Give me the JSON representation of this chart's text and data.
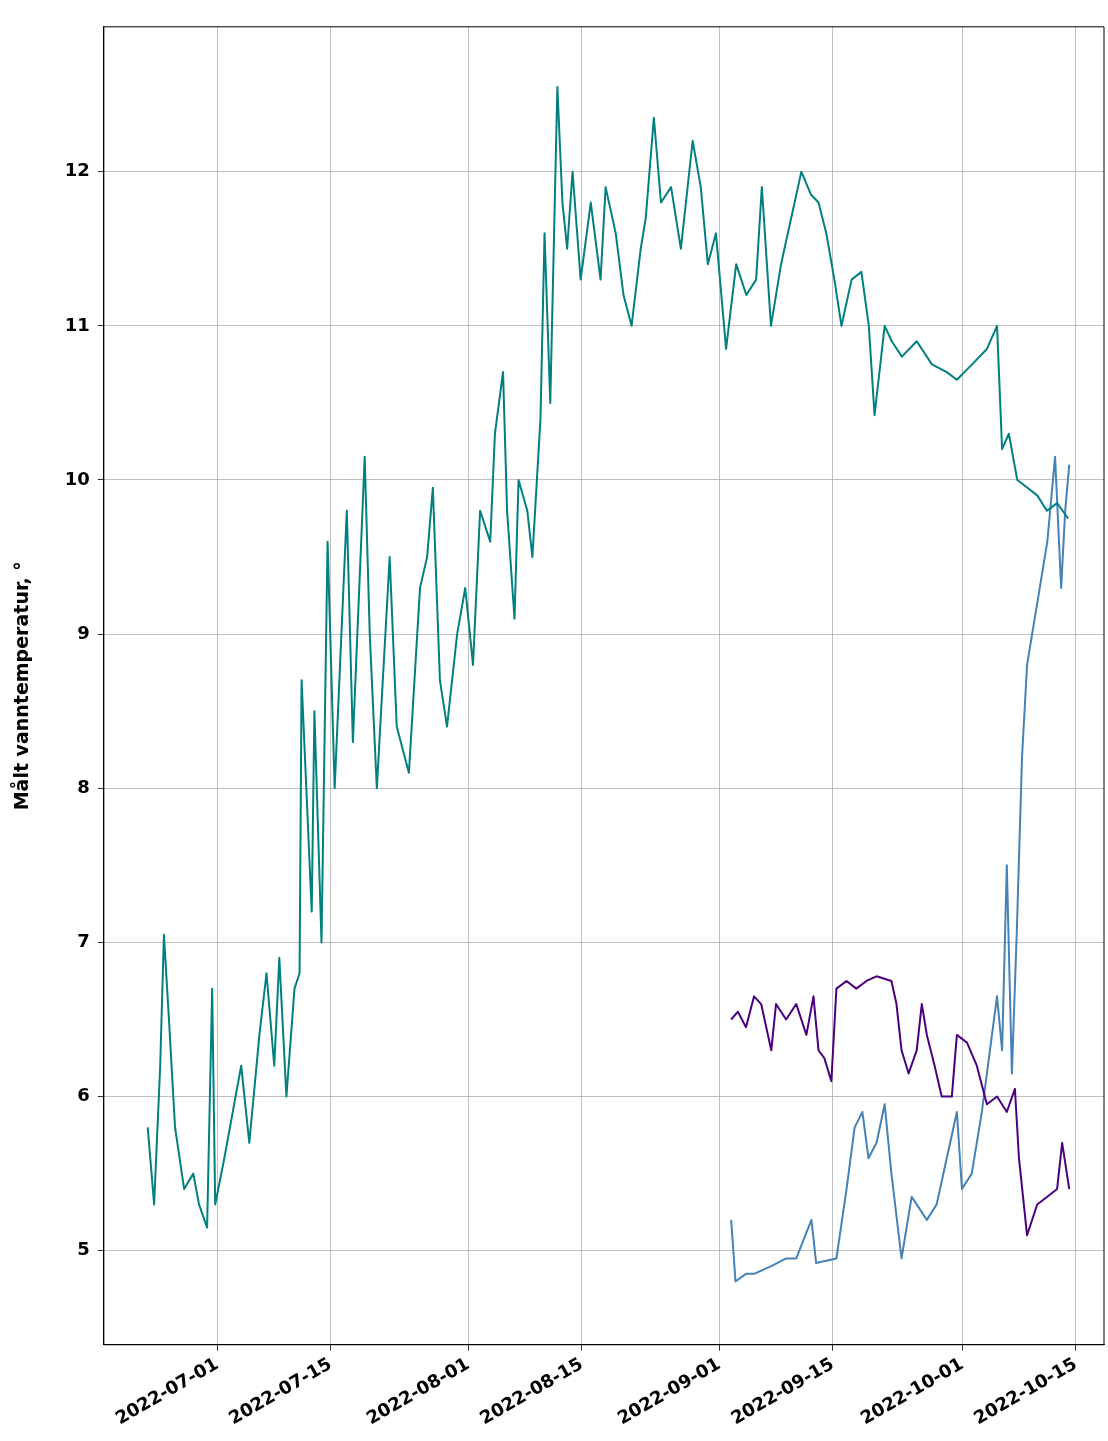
{
  "chart_data": {
    "type": "line",
    "ylabel": "Målt vanntemperatur, °",
    "xlim": [
      "2022-06-17T00:00",
      "2022-10-18T12:00"
    ],
    "xticks": [
      "2022-07-01",
      "2022-07-15",
      "2022-08-01",
      "2022-08-15",
      "2022-09-01",
      "2022-09-15",
      "2022-10-01",
      "2022-10-15"
    ],
    "ylim": [
      4.39,
      12.94
    ],
    "yticks": [
      5,
      6,
      7,
      8,
      9,
      10,
      11,
      12
    ],
    "grid": true,
    "marker": "none",
    "line_style": "solid",
    "series": [
      {
        "color": "#008080",
        "x": [
          "2022-06-22T10:00",
          "2022-06-23T05:00",
          "2022-06-23T23:00",
          "2022-06-24T10:00",
          "2022-06-25T01:00",
          "2022-06-25T19:00",
          "2022-06-26T22:00",
          "2022-06-28T01:00",
          "2022-06-28T18:00",
          "2022-06-29T18:00",
          "2022-06-30T09:00",
          "2022-06-30T18:00",
          "2022-07-01T21:00",
          "2022-07-03T23:00",
          "2022-07-04T23:00",
          "2022-07-06T05:00",
          "2022-07-07T02:00",
          "2022-07-08T01:00",
          "2022-07-08T16:00",
          "2022-07-09T13:00",
          "2022-07-10T13:00",
          "2022-07-11T04:00",
          "2022-07-11T10:00",
          "2022-07-12T16:00",
          "2022-07-13T00:00",
          "2022-07-13T21:00",
          "2022-07-14T15:00",
          "2022-07-15T12:00",
          "2022-07-17T00:00",
          "2022-07-17T18:00",
          "2022-07-19T05:00",
          "2022-07-19T20:00",
          "2022-07-20T17:00",
          "2022-07-22T07:00",
          "2022-07-23T04:00",
          "2022-07-24T16:00",
          "2022-07-26T01:00",
          "2022-07-26T22:00",
          "2022-07-27T15:00",
          "2022-07-28T12:00",
          "2022-07-29T09:00",
          "2022-07-30T15:00",
          "2022-07-31T15:00",
          "2022-08-01T14:00",
          "2022-08-02T11:00",
          "2022-08-03T17:00",
          "2022-08-04T07:00",
          "2022-08-05T07:00",
          "2022-08-05T19:00",
          "2022-08-06T17:00",
          "2022-08-07T05:00",
          "2022-08-08T07:00",
          "2022-08-08T22:00",
          "2022-08-09T22:00",
          "2022-08-10T10:00",
          "2022-08-11T03:00",
          "2022-08-12T00:00",
          "2022-08-12T15:00",
          "2022-08-13T05:00",
          "2022-08-13T21:00",
          "2022-08-14T21:00",
          "2022-08-16T03:00",
          "2022-08-17T08:00",
          "2022-08-17T23:00",
          "2022-08-19T05:00",
          "2022-08-20T04:00",
          "2022-08-21T04:00",
          "2022-08-22T07:00",
          "2022-08-22T22:00",
          "2022-08-23T22:00",
          "2022-08-24T19:00",
          "2022-08-26T01:00",
          "2022-08-27T06:00",
          "2022-08-28T17:00",
          "2022-08-29T17:00",
          "2022-08-30T14:00",
          "2022-08-31T14:00",
          "2022-09-01T20:00",
          "2022-09-03T02:00",
          "2022-09-04T08:00",
          "2022-09-05T13:00",
          "2022-09-06T06:00",
          "2022-09-07T09:00",
          "2022-09-08T15:00",
          "2022-09-09T21:00",
          "2022-09-11T03:00",
          "2022-09-12T08:00",
          "2022-09-13T06:00",
          "2022-09-14T05:00",
          "2022-09-15T05:00",
          "2022-09-16T02:00",
          "2022-09-17T08:00",
          "2022-09-18T13:00",
          "2022-09-19T11:00",
          "2022-09-20T04:00",
          "2022-09-21T10:00",
          "2022-09-22T07:00",
          "2022-09-23T13:00",
          "2022-09-25T09:00",
          "2022-09-27T06:00",
          "2022-09-29T02:00",
          "2022-09-30T08:00",
          "2022-10-02T05:00",
          "2022-10-04T01:00",
          "2022-10-05T07:00",
          "2022-10-05T22:00",
          "2022-10-06T18:00",
          "2022-10-07T19:00",
          "2022-10-09T01:00",
          "2022-10-10T06:00",
          "2022-10-11T11:00",
          "2022-10-12T17:00",
          "2022-10-14T02:00"
        ],
        "values": [
          5.8,
          5.3,
          6.2,
          7.05,
          6.5,
          5.8,
          5.4,
          5.5,
          5.3,
          5.15,
          6.7,
          5.3,
          5.6,
          6.2,
          5.7,
          6.4,
          6.8,
          6.2,
          6.9,
          6.0,
          6.7,
          6.8,
          8.7,
          7.2,
          8.5,
          7.0,
          9.6,
          8.0,
          9.8,
          8.3,
          10.15,
          9.0,
          8.0,
          9.5,
          8.4,
          8.1,
          9.3,
          9.5,
          9.95,
          8.7,
          8.4,
          9.0,
          9.3,
          8.8,
          9.8,
          9.6,
          10.3,
          10.7,
          9.8,
          9.1,
          10.0,
          9.8,
          9.5,
          10.4,
          11.6,
          10.5,
          12.55,
          11.8,
          11.5,
          12.0,
          11.3,
          11.8,
          11.3,
          11.9,
          11.6,
          11.2,
          11.0,
          11.5,
          11.7,
          12.35,
          11.8,
          11.9,
          11.5,
          12.2,
          11.9,
          11.4,
          11.6,
          10.85,
          11.4,
          11.2,
          11.3,
          11.9,
          11.0,
          11.4,
          11.7,
          12.0,
          11.85,
          11.8,
          11.6,
          11.3,
          11.0,
          11.3,
          11.35,
          11.0,
          10.42,
          11.0,
          10.9,
          10.8,
          10.9,
          10.75,
          10.7,
          10.65,
          10.75,
          10.85,
          11.0,
          10.2,
          10.3,
          10.0,
          9.95,
          9.9,
          9.8,
          9.85,
          9.75
        ]
      },
      {
        "color": "#4b0082",
        "x": [
          "2022-09-02T11:00",
          "2022-09-03T07:00",
          "2022-09-04T07:00",
          "2022-09-05T07:00",
          "2022-09-06T04:00",
          "2022-09-07T10:00",
          "2022-09-08T00:00",
          "2022-09-09T06:00",
          "2022-09-10T12:00",
          "2022-09-11T18:00",
          "2022-09-12T15:00",
          "2022-09-13T06:00",
          "2022-09-13T23:00",
          "2022-09-14T20:00",
          "2022-09-15T11:00",
          "2022-09-16T17:00",
          "2022-09-17T22:00",
          "2022-09-19T04:00",
          "2022-09-20T10:00",
          "2022-09-22T06:00",
          "2022-09-22T21:00",
          "2022-09-23T12:00",
          "2022-09-24T09:00",
          "2022-09-25T09:00",
          "2022-09-26T00:00",
          "2022-09-26T15:00",
          "2022-09-27T14:00",
          "2022-09-28T11:00",
          "2022-09-29T17:00",
          "2022-09-30T08:00",
          "2022-10-01T14:00",
          "2022-10-02T19:00",
          "2022-10-04T01:00",
          "2022-10-05T07:00",
          "2022-10-06T12:00",
          "2022-10-07T12:00",
          "2022-10-08T00:00",
          "2022-10-09T00:00",
          "2022-10-10T06:00",
          "2022-10-11T12:00",
          "2022-10-12T17:00",
          "2022-10-13T08:00",
          "2022-10-14T05:00"
        ],
        "values": [
          6.5,
          6.55,
          6.45,
          6.65,
          6.6,
          6.3,
          6.6,
          6.5,
          6.6,
          6.4,
          6.65,
          6.3,
          6.25,
          6.1,
          6.7,
          6.75,
          6.7,
          6.75,
          6.78,
          6.75,
          6.6,
          6.3,
          6.15,
          6.3,
          6.6,
          6.4,
          6.2,
          6.0,
          6.0,
          6.4,
          6.35,
          6.2,
          5.95,
          6.0,
          5.9,
          6.05,
          5.6,
          5.1,
          5.3,
          5.35,
          5.4,
          5.7,
          5.4
        ]
      },
      {
        "color": "#4682b4",
        "x": [
          "2022-09-02T11:00",
          "2022-09-03T00:00",
          "2022-09-04T07:00",
          "2022-09-05T07:00",
          "2022-09-07T10:00",
          "2022-09-09T06:00",
          "2022-09-10T12:00",
          "2022-09-12T09:00",
          "2022-09-12T23:00",
          "2022-09-15T11:00",
          "2022-09-16T17:00",
          "2022-09-17T17:00",
          "2022-09-18T16:00",
          "2022-09-19T10:00",
          "2022-09-20T10:00",
          "2022-09-21T10:00",
          "2022-09-22T06:00",
          "2022-09-23T12:00",
          "2022-09-24T18:00",
          "2022-09-26T15:00",
          "2022-09-27T20:00",
          "2022-09-29T02:00",
          "2022-09-30T08:00",
          "2022-09-30T23:00",
          "2022-10-02T04:00",
          "2022-10-03T10:00",
          "2022-10-04T10:00",
          "2022-10-05T07:00",
          "2022-10-05T22:00",
          "2022-10-06T12:00",
          "2022-10-07T03:00",
          "2022-10-07T18:00",
          "2022-10-08T09:00",
          "2022-10-09T00:00",
          "2022-10-10T06:00",
          "2022-10-11T12:00",
          "2022-10-12T11:00",
          "2022-10-13T05:00",
          "2022-10-13T17:00",
          "2022-10-14T05:00"
        ],
        "values": [
          5.2,
          4.8,
          4.85,
          4.85,
          4.9,
          4.95,
          4.95,
          5.2,
          4.92,
          4.95,
          5.4,
          5.8,
          5.9,
          5.6,
          5.7,
          5.95,
          5.5,
          4.95,
          5.35,
          5.2,
          5.3,
          5.6,
          5.9,
          5.4,
          5.5,
          5.9,
          6.3,
          6.65,
          6.3,
          7.5,
          6.15,
          7.1,
          8.2,
          8.8,
          9.2,
          9.6,
          10.15,
          9.3,
          9.8,
          10.1
        ]
      }
    ]
  }
}
